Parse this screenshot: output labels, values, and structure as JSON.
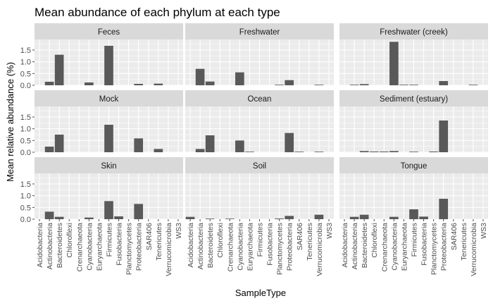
{
  "chart_data": {
    "type": "bar",
    "title": "Mean abundance of each phylum at each type",
    "xlabel": "SampleType",
    "ylabel": "Mean relative abundance (%)",
    "ylim": [
      0,
      1.95
    ],
    "yticks": [
      "0.0",
      "0.5",
      "1.0",
      "1.5"
    ],
    "ytick_values": [
      0,
      0.5,
      1.0,
      1.5
    ],
    "grid": true,
    "categories": [
      "Acidobacteria",
      "Actinobacteria",
      "Bacteroidetes",
      "Chloroflexi",
      "Crenarchaeota",
      "Cyanobacteria",
      "Euryarchaeota",
      "Firmicutes",
      "Fusobacteria",
      "Planctomycetes",
      "Proteobacteria",
      "SAR406",
      "Tenericutes",
      "Verrucomicrobia",
      "WS3"
    ],
    "facets": [
      {
        "name": "Feces",
        "values": [
          null,
          0.15,
          1.3,
          null,
          null,
          0.12,
          null,
          1.68,
          null,
          null,
          0.06,
          null,
          0.07,
          null,
          null
        ]
      },
      {
        "name": "Freshwater",
        "values": [
          null,
          0.7,
          0.16,
          null,
          null,
          0.55,
          null,
          null,
          null,
          0.02,
          0.22,
          null,
          null,
          0.02,
          null
        ]
      },
      {
        "name": "Freshwater (creek)",
        "values": [
          null,
          0.02,
          0.05,
          null,
          null,
          1.85,
          0.02,
          0.02,
          null,
          null,
          0.18,
          null,
          null,
          0.02,
          null
        ]
      },
      {
        "name": "Mock",
        "values": [
          null,
          0.24,
          0.75,
          null,
          null,
          null,
          null,
          1.17,
          null,
          null,
          0.59,
          null,
          0.14,
          null,
          null
        ]
      },
      {
        "name": "Ocean",
        "values": [
          null,
          0.14,
          0.72,
          null,
          null,
          0.5,
          0.02,
          null,
          null,
          null,
          0.82,
          0.02,
          null,
          0.02,
          null
        ]
      },
      {
        "name": "Sediment (estuary)",
        "values": [
          null,
          null,
          0.05,
          0.03,
          0.03,
          0.05,
          null,
          0.02,
          null,
          0.03,
          1.35,
          null,
          null,
          null,
          null
        ]
      },
      {
        "name": "Skin",
        "values": [
          null,
          0.32,
          0.1,
          null,
          null,
          0.07,
          null,
          0.77,
          0.12,
          null,
          0.65,
          null,
          null,
          null,
          null
        ]
      },
      {
        "name": "Soil",
        "values": [
          0.1,
          null,
          0.02,
          null,
          0.02,
          null,
          null,
          null,
          null,
          0.03,
          0.14,
          null,
          null,
          0.19,
          null
        ]
      },
      {
        "name": "Tongue",
        "values": [
          null,
          0.1,
          0.19,
          null,
          null,
          0.1,
          null,
          0.42,
          0.11,
          null,
          0.87,
          null,
          null,
          null,
          null
        ]
      }
    ],
    "colors": {
      "bar": "#595959",
      "panel": "#ebebeb",
      "strip": "#d9d9d9",
      "grid": "#ffffff",
      "text": "#1a1a1a",
      "axis_text": "#4d4d4d"
    }
  }
}
